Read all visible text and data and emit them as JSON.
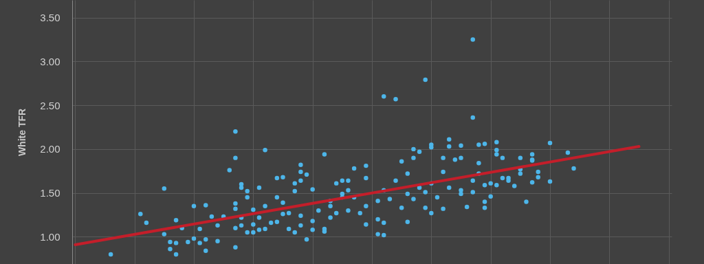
{
  "chart_data": {
    "type": "scatter",
    "ylabel": "White TFR",
    "ylim": [
      0.69,
      3.7
    ],
    "categories": [
      null,
      null,
      null,
      null,
      null,
      null,
      null,
      null,
      null,
      null,
      null,
      null,
      null,
      null,
      null,
      null,
      null,
      null,
      null,
      null,
      null,
      null,
      null,
      null,
      null,
      null,
      null,
      null,
      null,
      null,
      null,
      null,
      null,
      null,
      null,
      null,
      null,
      null,
      null,
      null,
      null,
      null,
      null,
      null,
      null,
      null,
      null,
      null,
      null,
      null,
      null,
      null,
      null,
      null,
      null,
      null,
      null,
      null,
      null,
      null,
      null,
      null,
      null,
      null,
      null,
      null,
      null,
      null,
      null,
      null,
      null,
      null,
      null,
      null,
      null,
      null,
      null,
      null,
      null,
      null,
      null,
      null,
      null,
      null,
      null,
      null,
      null,
      null,
      null,
      null,
      null,
      null,
      null,
      null,
      null,
      null,
      null,
      null,
      null,
      null,
      null
    ],
    "yticks": [
      {
        "value": 1,
        "label": "1.00"
      },
      {
        "value": 1.5,
        "label": "1.50"
      },
      {
        "value": 2,
        "label": "2.00"
      },
      {
        "value": 2.5,
        "label": "2.50"
      },
      {
        "value": 3,
        "label": "3.00"
      },
      {
        "value": 3.5,
        "label": "3.50"
      }
    ],
    "grid": true,
    "tick_labels": "y",
    "marker": "circle",
    "series": [
      {
        "color": "#4db6ea",
        "values": [
          null,
          null,
          null,
          null,
          null,
          null,
          0.8,
          null,
          null,
          null,
          null,
          1.26,
          1.16,
          null,
          null,
          1.55,
          0.86,
          1.19,
          1.1,
          0.94,
          1.35,
          0.93,
          1.36,
          1.23,
          1.13,
          1.23,
          1.76,
          1.38,
          1.22,
          1.52,
          1.14,
          1.56,
          1.99,
          1.16,
          1.67,
          1.68,
          1.09,
          1.05,
          1.82,
          0.97,
          1.08,
          1.3,
          1.09,
          1.41,
          1.61,
          1.45,
          1.53,
          1.45,
          1.27,
          1.67,
          null,
          1.41,
          1.02,
          1.43,
          2.57,
          1.33,
          1.49,
          2.0,
          1.97,
          1.33,
          1.27,
          1.45,
          1.9,
          1.56,
          1.88,
          1.53,
          1.34,
          1.64,
          1.84,
          1.4,
          1.61,
          1.94,
          1.67,
          1.67,
          1.58,
          1.72,
          1.4,
          1.88,
          1.68,
          null,
          2.07,
          null,
          null,
          1.96,
          1.78,
          null,
          null,
          null,
          null,
          null,
          null,
          null,
          null,
          null,
          null,
          null,
          null,
          null,
          null,
          null,
          null
        ]
      },
      {
        "color": "#4db6ea",
        "values": [
          null,
          null,
          null,
          null,
          null,
          null,
          null,
          null,
          null,
          null,
          null,
          null,
          null,
          null,
          null,
          1.03,
          0.94,
          0.8,
          null,
          null,
          0.98,
          1.09,
          0.84,
          null,
          0.95,
          null,
          null,
          1.32,
          1.13,
          1.45,
          1.31,
          1.22,
          1.09,
          null,
          1.45,
          1.39,
          1.27,
          1.61,
          1.13,
          1.71,
          1.54,
          null,
          1.06,
          1.22,
          1.27,
          1.64,
          1.64,
          1.78,
          null,
          1.14,
          null,
          1.2,
          1.16,
          null,
          1.64,
          1.86,
          1.72,
          1.9,
          1.56,
          2.79,
          2.02,
          null,
          1.32,
          2.03,
          null,
          2.04,
          null,
          1.51,
          1.72,
          1.59,
          1.46,
          2.08,
          1.9,
          1.64,
          null,
          1.9,
          null,
          1.94,
          1.74,
          null,
          1.63,
          null,
          null,
          null,
          null,
          null,
          null,
          null,
          null,
          null,
          null,
          null,
          null,
          null,
          null,
          null,
          null,
          null,
          null,
          null,
          null
        ]
      },
      {
        "color": "#4db6ea",
        "values": [
          null,
          null,
          null,
          null,
          null,
          null,
          null,
          null,
          null,
          null,
          null,
          null,
          null,
          null,
          null,
          null,
          null,
          0.93,
          null,
          null,
          null,
          null,
          0.97,
          null,
          null,
          null,
          null,
          1.9,
          1.6,
          1.05,
          1.05,
          1.08,
          1.35,
          null,
          1.17,
          1.26,
          null,
          1.52,
          1.64,
          null,
          1.18,
          null,
          1.94,
          1.35,
          null,
          1.49,
          1.3,
          null,
          null,
          1.81,
          null,
          1.03,
          2.6,
          null,
          null,
          null,
          1.17,
          1.43,
          null,
          1.51,
          1.61,
          null,
          1.74,
          2.11,
          null,
          1.49,
          null,
          3.25,
          2.05,
          1.33,
          null,
          1.59,
          null,
          null,
          null,
          1.77,
          null,
          1.62,
          null,
          null,
          null,
          null,
          null,
          null,
          null,
          null,
          null,
          null,
          null,
          null,
          null,
          null,
          null,
          null,
          null,
          null,
          null,
          null,
          null,
          null,
          null
        ]
      },
      {
        "color": "#4db6ea",
        "values": [
          null,
          null,
          null,
          null,
          null,
          null,
          null,
          null,
          null,
          null,
          null,
          null,
          null,
          null,
          null,
          null,
          null,
          null,
          null,
          null,
          null,
          null,
          null,
          null,
          null,
          null,
          null,
          2.2,
          1.56,
          null,
          null,
          null,
          null,
          null,
          null,
          null,
          null,
          null,
          1.74,
          null,
          null,
          null,
          null,
          null,
          null,
          null,
          null,
          null,
          null,
          1.35,
          null,
          null,
          1.53,
          null,
          null,
          null,
          null,
          null,
          null,
          null,
          2.05,
          null,
          null,
          null,
          null,
          1.9,
          null,
          2.36,
          null,
          2.06,
          null,
          1.99,
          null,
          null,
          null,
          null,
          null,
          1.87,
          null,
          null,
          null,
          null,
          null,
          null,
          null,
          null,
          null,
          null,
          null,
          null,
          null,
          null,
          null,
          null,
          null,
          null,
          null,
          null,
          null,
          null,
          null
        ]
      },
      {
        "color": "#4db6ea",
        "values": [
          null,
          null,
          null,
          null,
          null,
          null,
          null,
          null,
          null,
          null,
          null,
          null,
          null,
          null,
          null,
          null,
          null,
          null,
          null,
          null,
          null,
          null,
          null,
          null,
          null,
          null,
          null,
          0.88,
          null,
          null,
          null,
          null,
          null,
          null,
          null,
          null,
          null,
          null,
          1.24,
          null,
          null,
          null,
          null,
          null,
          null,
          null,
          null,
          null,
          null,
          null,
          null,
          null,
          null,
          null,
          null,
          null,
          null,
          null,
          null,
          null,
          null,
          null,
          null,
          null,
          null,
          null,
          null,
          null,
          null,
          null,
          null,
          null,
          null,
          null,
          null,
          null,
          null,
          null,
          null,
          null,
          null,
          null,
          null,
          null,
          null,
          null,
          null,
          null,
          null,
          null,
          null,
          null,
          null,
          null,
          null,
          null,
          null,
          null,
          null,
          null,
          null
        ]
      },
      {
        "color": "#4db6ea",
        "values": [
          null,
          null,
          null,
          null,
          null,
          null,
          null,
          null,
          null,
          null,
          null,
          null,
          null,
          null,
          null,
          null,
          null,
          null,
          null,
          null,
          null,
          null,
          null,
          null,
          null,
          null,
          null,
          1.1,
          null,
          null,
          null,
          null,
          null,
          null,
          null,
          null,
          null,
          null,
          null,
          null,
          null,
          null,
          null,
          null,
          null,
          null,
          null,
          null,
          null,
          null,
          null,
          null,
          null,
          null,
          null,
          null,
          null,
          null,
          null,
          null,
          null,
          null,
          null,
          null,
          null,
          null,
          null,
          null,
          null,
          null,
          null,
          null,
          null,
          null,
          null,
          null,
          null,
          null,
          null,
          null,
          null,
          null,
          null,
          null,
          null,
          null,
          null,
          null,
          null,
          null,
          null,
          null,
          null,
          null,
          null,
          null,
          null,
          null,
          null,
          null,
          null
        ]
      },
      {
        "type": "line",
        "marker": "none",
        "color": "#c41e2a",
        "values": [
          0.91,
          null,
          null,
          null,
          null,
          null,
          null,
          null,
          null,
          null,
          null,
          null,
          null,
          null,
          null,
          null,
          null,
          null,
          null,
          null,
          null,
          null,
          null,
          null,
          null,
          null,
          null,
          null,
          null,
          null,
          null,
          null,
          null,
          null,
          null,
          null,
          null,
          null,
          null,
          null,
          null,
          null,
          null,
          null,
          null,
          null,
          null,
          null,
          null,
          null,
          null,
          null,
          null,
          null,
          null,
          null,
          null,
          null,
          null,
          null,
          null,
          null,
          null,
          null,
          null,
          null,
          null,
          null,
          null,
          null,
          null,
          null,
          null,
          null,
          null,
          null,
          null,
          null,
          null,
          null,
          null,
          null,
          null,
          null,
          null,
          null,
          null,
          null,
          null,
          null,
          null,
          null,
          null,
          null,
          null,
          2.03,
          null,
          null,
          null,
          null,
          null
        ]
      }
    ]
  }
}
